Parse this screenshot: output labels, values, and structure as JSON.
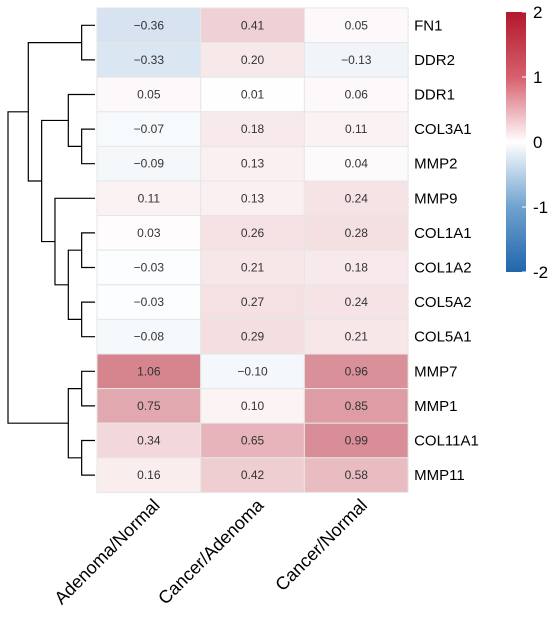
{
  "chart_data": {
    "type": "heatmap",
    "title": "",
    "columns": [
      "Adenoma/Normal",
      "Cancer/Adenoma",
      "Cancer/Normal"
    ],
    "rows": [
      "FN1",
      "DDR2",
      "DDR1",
      "COL3A1",
      "MMP2",
      "MMP9",
      "COL1A1",
      "COL1A2",
      "COL5A2",
      "COL5A1",
      "MMP7",
      "MMP1",
      "COL11A1",
      "MMP11"
    ],
    "values": [
      [
        -0.36,
        0.41,
        0.05
      ],
      [
        -0.33,
        0.2,
        -0.13
      ],
      [
        0.05,
        0.01,
        0.06
      ],
      [
        -0.07,
        0.18,
        0.11
      ],
      [
        -0.09,
        0.13,
        0.04
      ],
      [
        0.11,
        0.13,
        0.24
      ],
      [
        0.03,
        0.26,
        0.28
      ],
      [
        -0.03,
        0.21,
        0.18
      ],
      [
        -0.03,
        0.27,
        0.24
      ],
      [
        -0.08,
        0.29,
        0.21
      ],
      [
        1.06,
        -0.1,
        0.96
      ],
      [
        0.75,
        0.1,
        0.85
      ],
      [
        0.34,
        0.65,
        0.99
      ],
      [
        0.16,
        0.42,
        0.58
      ]
    ],
    "value_labels": [
      [
        "−0.36",
        "0.41",
        "0.05"
      ],
      [
        "−0.33",
        "0.20",
        "−0.13"
      ],
      [
        "0.05",
        "0.01",
        "0.06"
      ],
      [
        "−0.07",
        "0.18",
        "0.11"
      ],
      [
        "−0.09",
        "0.13",
        "0.04"
      ],
      [
        "0.11",
        "0.13",
        "0.24"
      ],
      [
        "0.03",
        "0.26",
        "0.28"
      ],
      [
        "−0.03",
        "0.21",
        "0.18"
      ],
      [
        "−0.03",
        "0.27",
        "0.24"
      ],
      [
        "−0.08",
        "0.29",
        "0.21"
      ],
      [
        "1.06",
        "−0.10",
        "0.96"
      ],
      [
        "0.75",
        "0.10",
        "0.85"
      ],
      [
        "0.34",
        "0.65",
        "0.99"
      ],
      [
        "0.16",
        "0.42",
        "0.58"
      ]
    ],
    "colorbar": {
      "min": -2,
      "max": 2,
      "ticks": [
        2,
        1,
        0,
        -1,
        -2
      ],
      "tick_labels": [
        "2",
        "1",
        "0",
        "-1",
        "-2"
      ],
      "colors": {
        "low": "#2166ac",
        "mid": "#ffffff",
        "high": "#b2182b"
      }
    },
    "dendrogram": "row clustering tree on the left",
    "grid": true
  }
}
